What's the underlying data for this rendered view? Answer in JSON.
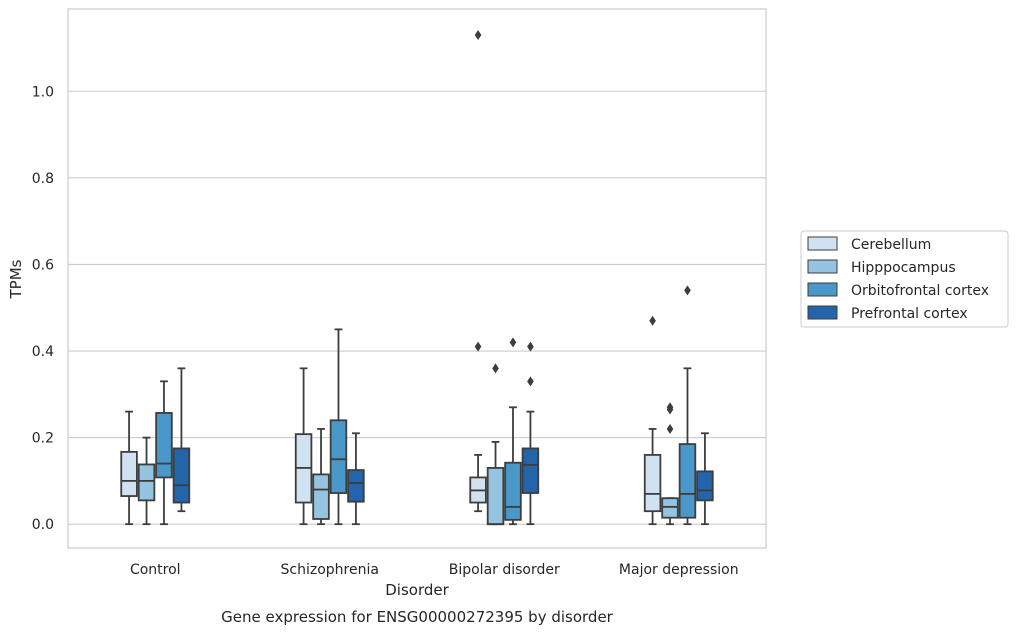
{
  "chart_data": {
    "type": "box",
    "title": "Gene expression for ENSG00000272395 by disorder",
    "xlabel": "Disorder",
    "ylabel": "TPMs",
    "ylim": [
      -0.055,
      1.19
    ],
    "yticks": [
      "0.0",
      "0.2",
      "0.4",
      "0.6",
      "0.8",
      "1.0"
    ],
    "grid": "horizontal",
    "legend_position": "right",
    "categories": [
      "Control",
      "Schizophrenia",
      "Bipolar disorder",
      "Major depression"
    ],
    "series": [
      {
        "name": "Cerebellum",
        "color": "#d0e1f2",
        "boxes": [
          {
            "whisker_low": 0.0,
            "q1": 0.065,
            "median": 0.1,
            "q3": 0.167,
            "whisker_high": 0.26,
            "outliers": []
          },
          {
            "whisker_low": 0.0,
            "q1": 0.05,
            "median": 0.13,
            "q3": 0.208,
            "whisker_high": 0.36,
            "outliers": []
          },
          {
            "whisker_low": 0.03,
            "q1": 0.05,
            "median": 0.078,
            "q3": 0.108,
            "whisker_high": 0.16,
            "outliers": [
              0.41,
              1.13
            ]
          },
          {
            "whisker_low": 0.0,
            "q1": 0.03,
            "median": 0.07,
            "q3": 0.16,
            "whisker_high": 0.22,
            "outliers": [
              0.47
            ]
          }
        ]
      },
      {
        "name": "Hipppocampus",
        "color": "#94c4df",
        "boxes": [
          {
            "whisker_low": 0.0,
            "q1": 0.055,
            "median": 0.1,
            "q3": 0.138,
            "whisker_high": 0.2,
            "outliers": []
          },
          {
            "whisker_low": 0.0,
            "q1": 0.012,
            "median": 0.08,
            "q3": 0.115,
            "whisker_high": 0.22,
            "outliers": []
          },
          {
            "whisker_low": 0.0,
            "q1": 0.0,
            "median": 0.0,
            "q3": 0.13,
            "whisker_high": 0.19,
            "outliers": [
              0.36
            ]
          },
          {
            "whisker_low": 0.0,
            "q1": 0.015,
            "median": 0.04,
            "q3": 0.06,
            "whisker_high": 0.06,
            "outliers": [
              0.22,
              0.265,
              0.27
            ]
          }
        ]
      },
      {
        "name": "Orbitofrontal cortex",
        "color": "#4a98c9",
        "boxes": [
          {
            "whisker_low": 0.0,
            "q1": 0.108,
            "median": 0.14,
            "q3": 0.257,
            "whisker_high": 0.33,
            "outliers": []
          },
          {
            "whisker_low": 0.0,
            "q1": 0.072,
            "median": 0.15,
            "q3": 0.24,
            "whisker_high": 0.45,
            "outliers": []
          },
          {
            "whisker_low": 0.0,
            "q1": 0.01,
            "median": 0.04,
            "q3": 0.142,
            "whisker_high": 0.27,
            "outliers": [
              0.42
            ]
          },
          {
            "whisker_low": 0.0,
            "q1": 0.015,
            "median": 0.07,
            "q3": 0.185,
            "whisker_high": 0.36,
            "outliers": [
              0.54
            ]
          }
        ]
      },
      {
        "name": "Prefrontal cortex",
        "color": "#2364aa",
        "boxes": [
          {
            "whisker_low": 0.03,
            "q1": 0.05,
            "median": 0.09,
            "q3": 0.175,
            "whisker_high": 0.36,
            "outliers": []
          },
          {
            "whisker_low": 0.0,
            "q1": 0.052,
            "median": 0.095,
            "q3": 0.125,
            "whisker_high": 0.21,
            "outliers": []
          },
          {
            "whisker_low": 0.0,
            "q1": 0.072,
            "median": 0.137,
            "q3": 0.175,
            "whisker_high": 0.26,
            "outliers": [
              0.33,
              0.41
            ]
          },
          {
            "whisker_low": 0.0,
            "q1": 0.055,
            "median": 0.078,
            "q3": 0.122,
            "whisker_high": 0.21,
            "outliers": []
          }
        ]
      }
    ]
  }
}
